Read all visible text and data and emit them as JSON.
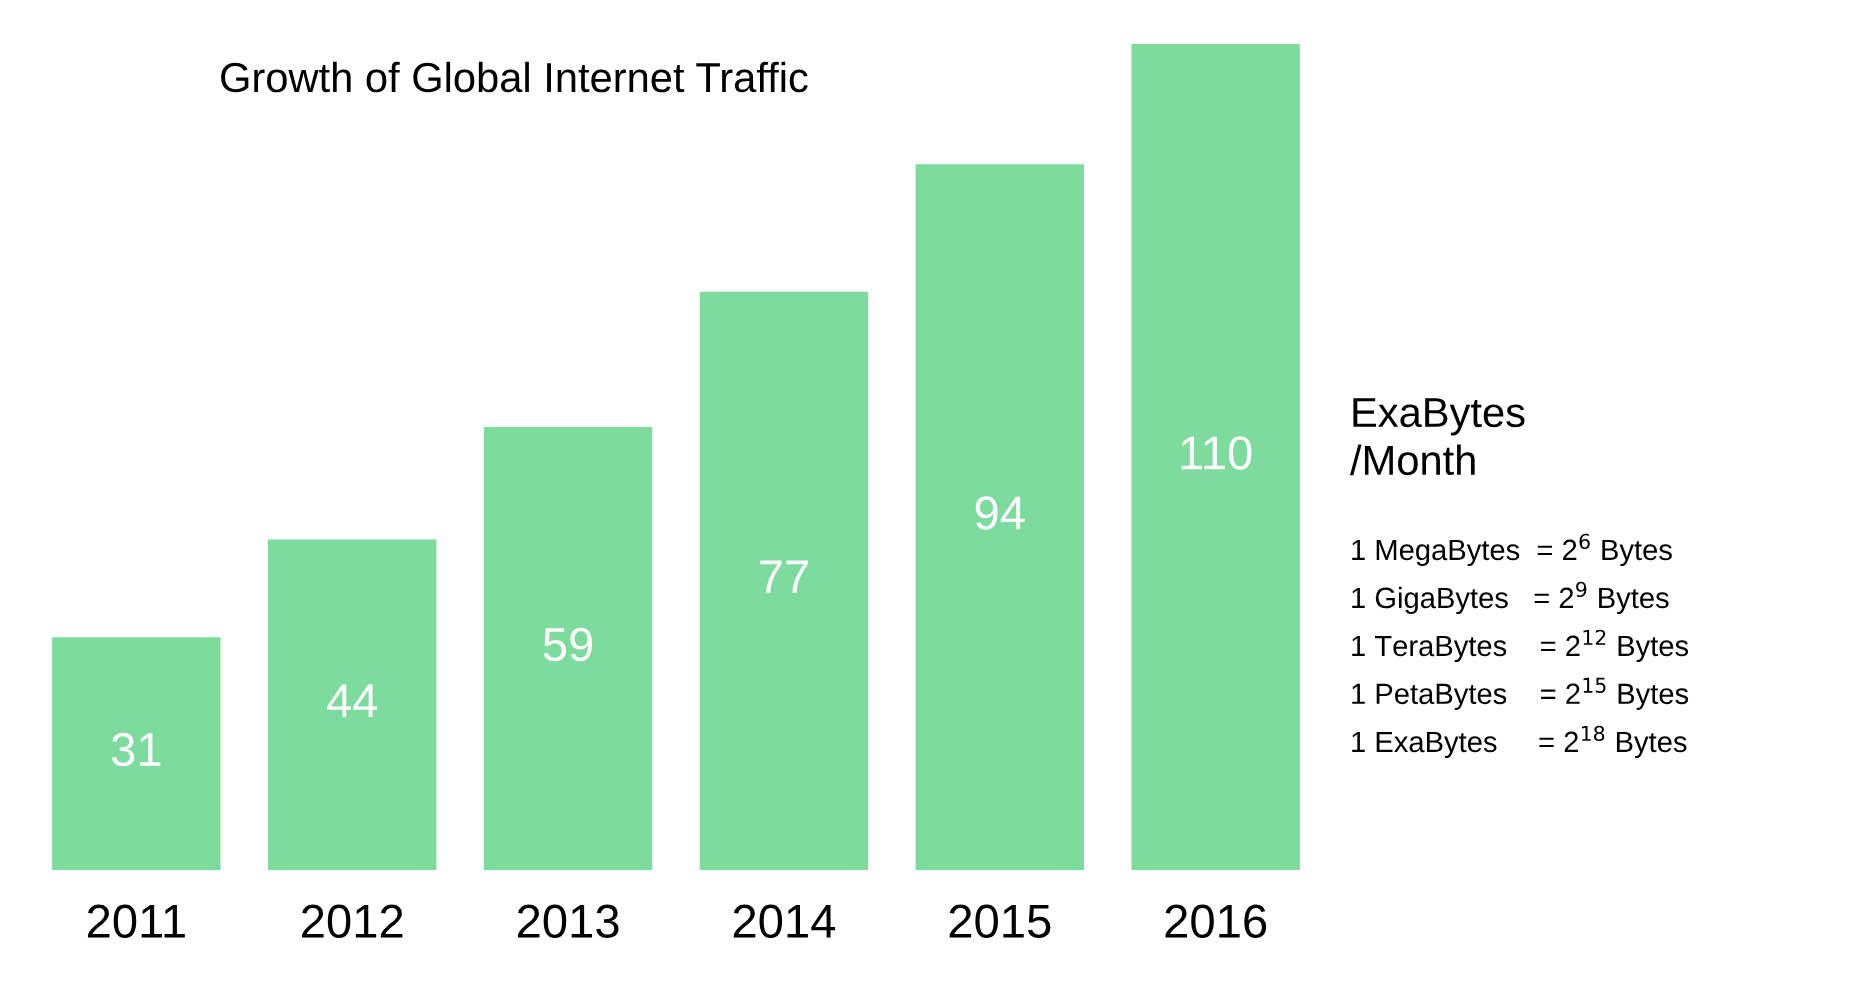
{
  "chart_data": {
    "type": "bar",
    "title": "Growth of Global Internet Traffic",
    "categories": [
      "2011",
      "2012",
      "2013",
      "2014",
      "2015",
      "2016"
    ],
    "values": [
      31,
      44,
      59,
      77,
      94,
      110
    ],
    "color": "#7ddb9d",
    "data_labels": true,
    "annotations": [
      "ExaBytes\n/Month",
      "1 MegaBytes  = 2$^{6}$ Bytes",
      "1 GigaBytes   = 2$^{9}$ Bytes",
      "1 TeraBytes    = 2$^{12}$ Bytes",
      "1 PetaBytes    = 2$^{15}$ Bytes",
      "1 ExaBytes     = 2$^{18}$ Bytes"
    ]
  }
}
